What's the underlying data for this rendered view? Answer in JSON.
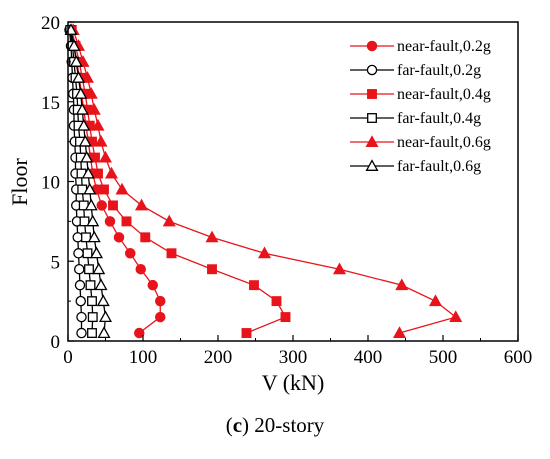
{
  "chart_data": {
    "type": "line",
    "title": "",
    "xlabel": "V (kN)",
    "ylabel": "Floor",
    "xlim": [
      0,
      600
    ],
    "ylim": [
      0,
      20
    ],
    "xticks": [
      0,
      100,
      200,
      300,
      400,
      500,
      600
    ],
    "yticks": [
      0,
      5,
      10,
      15,
      20
    ],
    "grid": false,
    "legend_position": "top-right",
    "series": [
      {
        "name": "near-fault,0.2g",
        "color": "#e8141b",
        "marker": "circle",
        "filled": true,
        "points": [
          [
            95,
            0.5
          ],
          [
            123,
            1.5
          ],
          [
            123,
            2.5
          ],
          [
            113,
            3.5
          ],
          [
            97,
            4.5
          ],
          [
            83,
            5.5
          ],
          [
            68,
            6.5
          ],
          [
            56,
            7.5
          ],
          [
            45,
            8.5
          ],
          [
            38,
            9.5
          ],
          [
            33,
            10.5
          ],
          [
            30,
            11.5
          ],
          [
            27,
            12.5
          ],
          [
            24,
            13.5
          ],
          [
            21,
            14.5
          ],
          [
            18,
            15.5
          ],
          [
            15,
            16.5
          ],
          [
            12,
            17.5
          ],
          [
            8,
            18.5
          ],
          [
            4,
            19.5
          ]
        ]
      },
      {
        "name": "far-fault,0.2g",
        "color": "#000000",
        "marker": "circle",
        "filled": false,
        "points": [
          [
            18,
            0.5
          ],
          [
            18,
            1.5
          ],
          [
            17,
            2.5
          ],
          [
            16,
            3.5
          ],
          [
            15,
            4.5
          ],
          [
            14,
            5.5
          ],
          [
            13,
            6.5
          ],
          [
            12,
            7.5
          ],
          [
            11,
            8.5
          ],
          [
            11,
            9.5
          ],
          [
            10,
            10.5
          ],
          [
            10,
            11.5
          ],
          [
            9,
            12.5
          ],
          [
            8,
            13.5
          ],
          [
            8,
            14.5
          ],
          [
            7,
            15.5
          ],
          [
            6,
            16.5
          ],
          [
            5,
            17.5
          ],
          [
            4,
            18.5
          ],
          [
            2,
            19.5
          ]
        ]
      },
      {
        "name": "near-fault,0.4g",
        "color": "#e8141b",
        "marker": "square",
        "filled": true,
        "points": [
          [
            238,
            0.5
          ],
          [
            290,
            1.5
          ],
          [
            278,
            2.5
          ],
          [
            248,
            3.5
          ],
          [
            192,
            4.5
          ],
          [
            138,
            5.5
          ],
          [
            103,
            6.5
          ],
          [
            78,
            7.5
          ],
          [
            60,
            8.5
          ],
          [
            48,
            9.5
          ],
          [
            40,
            10.5
          ],
          [
            36,
            11.5
          ],
          [
            32,
            12.5
          ],
          [
            29,
            13.5
          ],
          [
            26,
            14.5
          ],
          [
            23,
            15.5
          ],
          [
            19,
            16.5
          ],
          [
            15,
            17.5
          ],
          [
            10,
            18.5
          ],
          [
            5,
            19.5
          ]
        ]
      },
      {
        "name": "far-fault,0.4g",
        "color": "#000000",
        "marker": "square",
        "filled": false,
        "points": [
          [
            32,
            0.5
          ],
          [
            33,
            1.5
          ],
          [
            32,
            2.5
          ],
          [
            30,
            3.5
          ],
          [
            28,
            4.5
          ],
          [
            26,
            5.5
          ],
          [
            24,
            6.5
          ],
          [
            22,
            7.5
          ],
          [
            21,
            8.5
          ],
          [
            19,
            9.5
          ],
          [
            18,
            10.5
          ],
          [
            17,
            11.5
          ],
          [
            16,
            12.5
          ],
          [
            14,
            13.5
          ],
          [
            13,
            14.5
          ],
          [
            12,
            15.5
          ],
          [
            10,
            16.5
          ],
          [
            8,
            17.5
          ],
          [
            6,
            18.5
          ],
          [
            3,
            19.5
          ]
        ]
      },
      {
        "name": "near-fault,0.6g",
        "color": "#e8141b",
        "marker": "triangle",
        "filled": true,
        "points": [
          [
            442,
            0.5
          ],
          [
            517,
            1.5
          ],
          [
            490,
            2.5
          ],
          [
            445,
            3.5
          ],
          [
            362,
            4.5
          ],
          [
            262,
            5.5
          ],
          [
            192,
            6.5
          ],
          [
            135,
            7.5
          ],
          [
            98,
            8.5
          ],
          [
            72,
            9.5
          ],
          [
            58,
            10.5
          ],
          [
            50,
            11.5
          ],
          [
            44,
            12.5
          ],
          [
            40,
            13.5
          ],
          [
            35,
            14.5
          ],
          [
            31,
            15.5
          ],
          [
            26,
            16.5
          ],
          [
            20,
            17.5
          ],
          [
            14,
            18.5
          ],
          [
            7,
            19.5
          ]
        ]
      },
      {
        "name": "far-fault,0.6g",
        "color": "#000000",
        "marker": "triangle",
        "filled": false,
        "points": [
          [
            48,
            0.5
          ],
          [
            50,
            1.5
          ],
          [
            47,
            2.5
          ],
          [
            44,
            3.5
          ],
          [
            41,
            4.5
          ],
          [
            38,
            5.5
          ],
          [
            35,
            6.5
          ],
          [
            33,
            7.5
          ],
          [
            31,
            8.5
          ],
          [
            29,
            9.5
          ],
          [
            27,
            10.5
          ],
          [
            25,
            11.5
          ],
          [
            23,
            12.5
          ],
          [
            21,
            13.5
          ],
          [
            19,
            14.5
          ],
          [
            17,
            15.5
          ],
          [
            14,
            16.5
          ],
          [
            11,
            17.5
          ],
          [
            8,
            18.5
          ],
          [
            4,
            19.5
          ]
        ]
      }
    ]
  },
  "caption": {
    "label": "c",
    "text": "20-story"
  }
}
